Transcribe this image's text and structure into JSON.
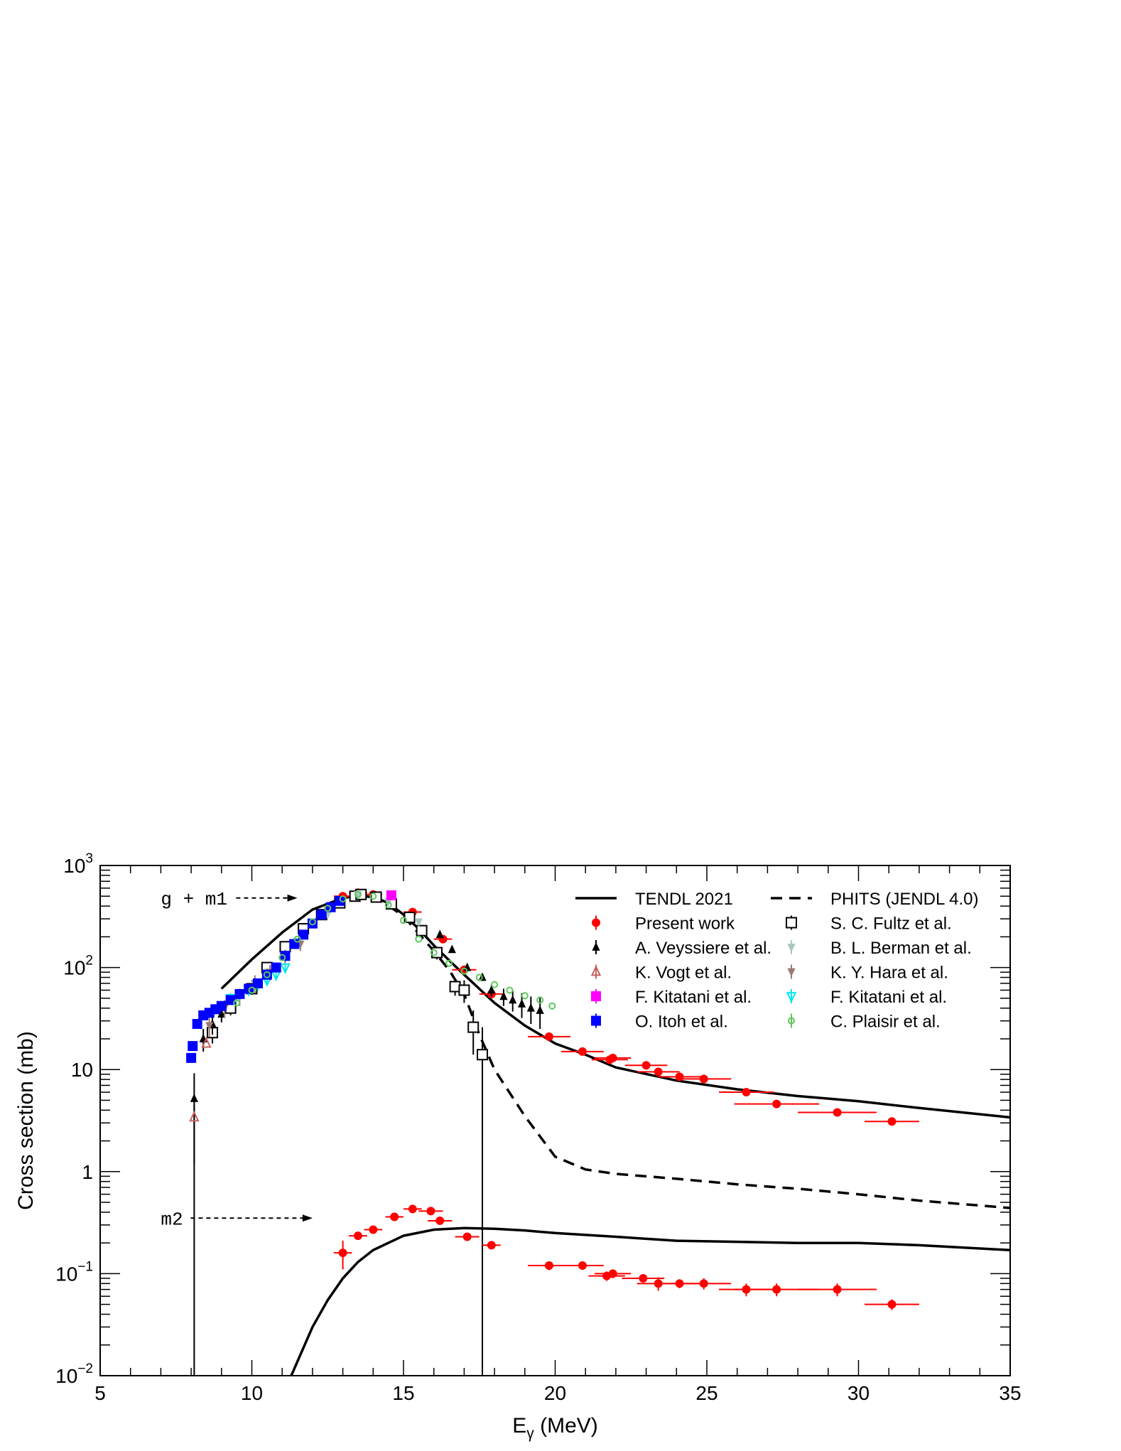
{
  "chart_data": {
    "type": "scatter",
    "title": "",
    "xlabel": "E",
    "xlabel_sub": "γ",
    "xlabel_unit": " (MeV)",
    "ylabel": "Cross section (mb)",
    "xlim": [
      5,
      35
    ],
    "ylim": [
      0.01,
      1000
    ],
    "yscale": "log",
    "grid": false,
    "legend_position": "top-right",
    "x_ticks": [
      "5",
      "10",
      "15",
      "20",
      "25",
      "30",
      "35"
    ],
    "y_ticks": [
      {
        "base": "10",
        "exp": "−2"
      },
      {
        "base": "10",
        "exp": "−1"
      },
      {
        "base": "1",
        "exp": ""
      },
      {
        "base": "10",
        "exp": ""
      },
      {
        "base": "10",
        "exp": "2"
      },
      {
        "base": "10",
        "exp": "3"
      }
    ],
    "annotations": [
      {
        "text": "g + m1",
        "x": 7.0,
        "y": 480,
        "arrow_to_x": 11.5
      },
      {
        "text": "m2",
        "x": 7.0,
        "y": 0.35,
        "arrow_to_x": 12.0
      }
    ],
    "series": [
      {
        "name": "TENDL 2021",
        "kind": "line",
        "color": "#000000",
        "dash": false,
        "x": [
          9,
          10,
          11,
          12,
          13,
          13.5,
          14,
          14.5,
          15,
          15.5,
          16,
          16.5,
          17,
          18,
          19,
          20,
          21,
          22,
          24,
          26,
          28,
          30,
          32,
          35
        ],
        "y": [
          62,
          120,
          220,
          370,
          480,
          505,
          490,
          430,
          330,
          240,
          165,
          118,
          85,
          45,
          27,
          18,
          14,
          10.5,
          7.8,
          6.4,
          5.5,
          4.9,
          4.2,
          3.4
        ]
      },
      {
        "name": "PHITS (JENDL 4.0)",
        "kind": "line",
        "color": "#000000",
        "dash": true,
        "x": [
          14,
          15,
          16,
          16.5,
          17,
          17.5,
          18,
          19,
          20,
          21,
          22,
          24,
          26,
          28,
          30,
          32,
          35
        ],
        "y": [
          510,
          320,
          145,
          95,
          55,
          22,
          10,
          3.5,
          1.4,
          1.05,
          0.95,
          0.85,
          0.75,
          0.68,
          0.6,
          0.52,
          0.44
        ]
      },
      {
        "name": "TENDL 2021 (m2)",
        "kind": "line",
        "color": "#000000",
        "dash": false,
        "legend": false,
        "x": [
          11.3,
          12,
          12.5,
          13,
          13.5,
          14,
          15,
          16,
          17,
          18,
          19,
          20,
          22,
          24,
          26,
          28,
          30,
          32,
          35
        ],
        "y": [
          0.01,
          0.03,
          0.055,
          0.09,
          0.13,
          0.17,
          0.235,
          0.27,
          0.28,
          0.275,
          0.265,
          0.25,
          0.23,
          0.21,
          0.205,
          0.2,
          0.2,
          0.19,
          0.17
        ]
      },
      {
        "name": "Present work",
        "kind": "points",
        "marker": "circle",
        "color": "#ff0000",
        "x": [
          13.0,
          13.5,
          14.0,
          15.3,
          16.3,
          17.0,
          17.9,
          19.8,
          20.9,
          21.8,
          21.9,
          23.0,
          23.4,
          24.1,
          24.9,
          26.3,
          27.3,
          29.3,
          31.1
        ],
        "y": [
          500,
          540,
          520,
          350,
          190,
          95,
          55,
          21,
          15,
          12.5,
          13,
          11,
          9.5,
          8.5,
          8.1,
          6.0,
          4.6,
          3.8,
          3.1
        ],
        "xerr": [
          0.3,
          0.3,
          0.3,
          0.3,
          0.3,
          0.4,
          0.4,
          0.7,
          0.7,
          0.6,
          0.6,
          0.7,
          0.7,
          0.7,
          0.9,
          0.9,
          1.4,
          1.3,
          0.9
        ]
      },
      {
        "name": "Present work (m2)",
        "kind": "points",
        "marker": "circle",
        "color": "#ff0000",
        "legend": false,
        "x": [
          13.0,
          13.5,
          14.0,
          14.7,
          15.3,
          15.9,
          16.2,
          17.1,
          17.9,
          19.8,
          20.9,
          21.7,
          21.9,
          22.9,
          23.4,
          24.1,
          24.9,
          26.3,
          27.3,
          29.3,
          31.1
        ],
        "y": [
          0.16,
          0.235,
          0.27,
          0.36,
          0.43,
          0.41,
          0.33,
          0.23,
          0.19,
          0.12,
          0.12,
          0.095,
          0.1,
          0.09,
          0.08,
          0.08,
          0.08,
          0.07,
          0.07,
          0.07,
          0.05
        ],
        "yerr": [
          0.05,
          0.015,
          0.015,
          0.02,
          0.02,
          0.02,
          0.02,
          0.01,
          0.01,
          0.012,
          0.01,
          0.01,
          0.01,
          0.008,
          0.012,
          0.008,
          0.01,
          0.01,
          0.01,
          0.01,
          0.006
        ],
        "xerr": [
          0.3,
          0.3,
          0.3,
          0.3,
          0.3,
          0.4,
          0.4,
          0.4,
          0.3,
          0.7,
          0.7,
          0.6,
          0.6,
          0.7,
          0.7,
          0.7,
          0.9,
          0.9,
          1.4,
          1.3,
          0.9
        ]
      },
      {
        "name": "S. C. Fultz et al.",
        "kind": "points",
        "marker": "square-open",
        "color": "#000000",
        "x": [
          8.7,
          9.3,
          10.0,
          10.5,
          11.1,
          11.7,
          12.3,
          12.9,
          13.4,
          13.6,
          14.1,
          14.6,
          15.2,
          15.6,
          16.1,
          16.7,
          17.0,
          17.3,
          17.6
        ],
        "y": [
          23,
          40,
          62,
          100,
          160,
          240,
          330,
          430,
          500,
          520,
          490,
          420,
          310,
          230,
          140,
          65,
          60,
          26,
          14
        ],
        "yerr": [
          5,
          6,
          8,
          12,
          18,
          25,
          30,
          35,
          40,
          40,
          40,
          35,
          30,
          25,
          20,
          12,
          15,
          12,
          12
        ]
      },
      {
        "name": "A. Veyssiere et al.",
        "kind": "points",
        "marker": "triangle-up",
        "color": "#000000",
        "x": [
          8.1,
          8.4,
          8.7,
          9.0,
          16.2,
          16.6,
          17.1,
          17.6,
          17.9,
          18.3,
          18.6,
          18.9,
          19.2,
          19.5
        ],
        "y": [
          5.2,
          20,
          28,
          35,
          210,
          150,
          100,
          80,
          60,
          52,
          48,
          44,
          40,
          38
        ],
        "yerr": [
          4,
          5,
          6,
          6,
          12,
          10,
          8,
          6,
          8,
          10,
          11,
          12,
          12,
          13
        ]
      },
      {
        "name": "B. L. Berman et al.",
        "kind": "points",
        "marker": "triangle-down",
        "color": "#a8c6c0",
        "x": [
          9.5,
          10.5,
          11.5,
          12.5,
          13.5,
          14.5,
          15.5
        ],
        "y": [
          50,
          90,
          180,
          330,
          520,
          440,
          280
        ]
      },
      {
        "name": "K. Vogt et al.",
        "kind": "points",
        "marker": "triangle-up-open",
        "color": "#c86060",
        "x": [
          8.1,
          8.5
        ],
        "y": [
          3.4,
          18
        ]
      },
      {
        "name": "K. Y. Hara et al.",
        "kind": "points",
        "marker": "triangle-down",
        "color": "#9c7a72",
        "x": [
          8.6,
          9.1,
          9.6,
          10.1,
          10.6,
          11.1,
          11.6
        ],
        "y": [
          27,
          40,
          52,
          70,
          90,
          130,
          170
        ],
        "yerr": [
          6,
          8,
          10,
          14,
          16,
          20,
          25
        ]
      },
      {
        "name": "F. Kitatani et al.",
        "kind": "points",
        "marker": "square",
        "color": "#ff00ff",
        "x": [
          14.6
        ],
        "y": [
          510
        ]
      },
      {
        "name": "F. Kitatani et al.",
        "kind": "points",
        "marker": "triangle-down-open",
        "color": "#00e5ee",
        "x": [
          9.3,
          9.6,
          9.9,
          10.2,
          10.5,
          10.8,
          11.1
        ],
        "y": [
          50,
          55,
          60,
          68,
          75,
          85,
          100
        ],
        "yerr": [
          6,
          6,
          7,
          8,
          8,
          9,
          10
        ]
      },
      {
        "name": "O. Itoh et al.",
        "kind": "points",
        "marker": "square",
        "color": "#0000ff",
        "x": [
          8.0,
          8.05,
          8.2,
          8.4,
          8.6,
          8.8,
          9.0,
          9.3,
          9.6,
          9.9,
          10.2,
          10.5,
          10.8,
          11.1,
          11.4,
          11.7,
          12.0,
          12.3,
          12.6,
          12.9
        ],
        "y": [
          13,
          17,
          28,
          34,
          36,
          39,
          42,
          48,
          55,
          62,
          70,
          85,
          100,
          130,
          170,
          210,
          270,
          330,
          390,
          450
        ]
      },
      {
        "name": "C. Plaisir et al.",
        "kind": "points",
        "marker": "circle-small",
        "color": "#5cc85c",
        "x": [
          9.5,
          10.0,
          10.5,
          11.0,
          11.5,
          12.0,
          12.5,
          13.0,
          13.5,
          14.0,
          14.5,
          15.0,
          15.5,
          16.0,
          16.5,
          17.0,
          17.5,
          18.0,
          18.5,
          19.0,
          19.5,
          19.9
        ],
        "y": [
          45,
          60,
          85,
          125,
          190,
          280,
          380,
          470,
          520,
          500,
          410,
          290,
          190,
          140,
          110,
          92,
          80,
          68,
          60,
          53,
          48,
          42
        ]
      }
    ]
  }
}
